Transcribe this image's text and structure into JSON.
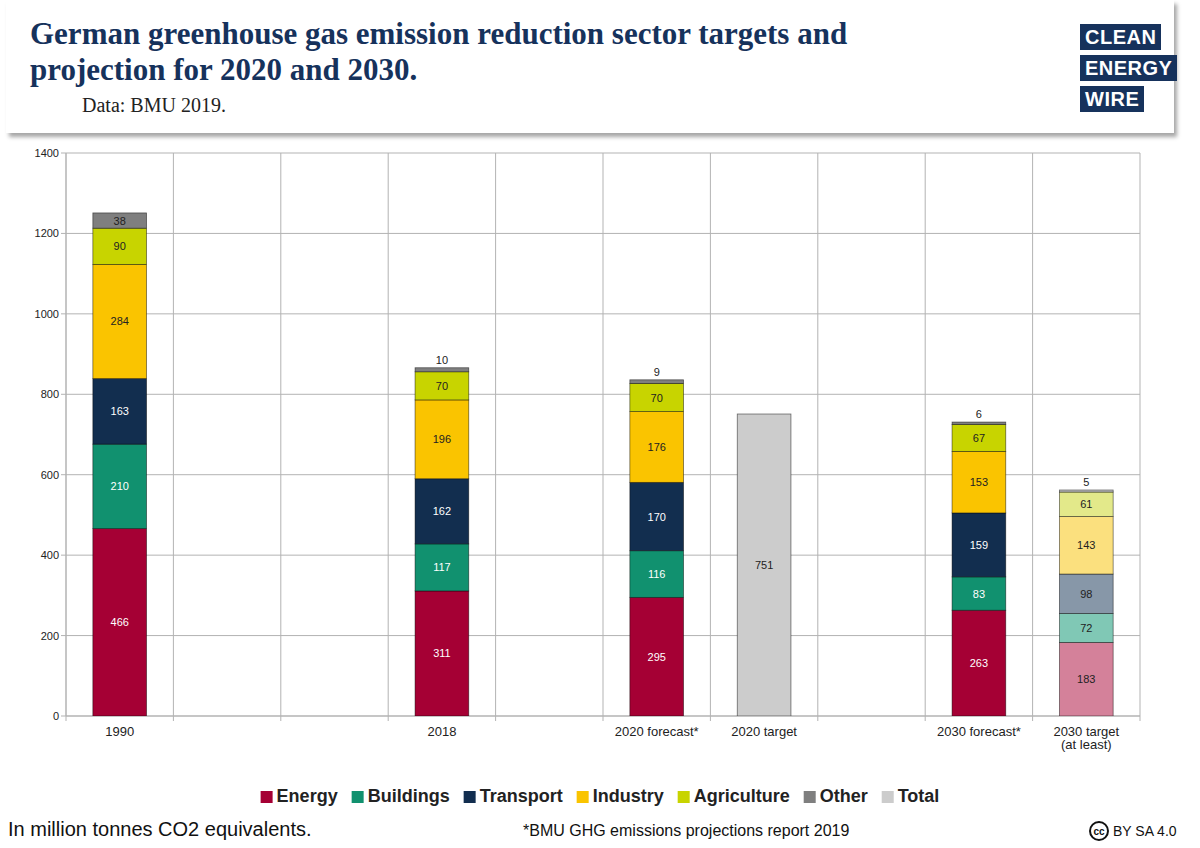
{
  "chart_data": {
    "type": "bar",
    "title": "German greenhouse gas emission reduction sector targets and\nprojection for 2020 and 2030.",
    "subtitle": "Data: BMU 2019.",
    "categories": [
      "1990",
      null,
      null,
      "2018",
      null,
      "2020 forecast*",
      "2020 target",
      null,
      "2030 forecast*",
      "2030 target\n(at least)"
    ],
    "series": [
      {
        "name": "Energy",
        "color": "#a50034",
        "colors": [
          "#a50034",
          "#a50034",
          "#a50034",
          "#a50034",
          "#a50034",
          "#a50034",
          "#a50034",
          "#a50034",
          "#a50034",
          "#d4819a"
        ],
        "values": [
          466,
          null,
          null,
          311,
          null,
          295,
          null,
          null,
          263,
          183
        ]
      },
      {
        "name": "Buildings",
        "color": "#11916f",
        "colors": [
          "#11916f",
          "#11916f",
          "#11916f",
          "#11916f",
          "#11916f",
          "#11916f",
          "#11916f",
          "#11916f",
          "#11916f",
          "#80c8b5"
        ],
        "values": [
          210,
          null,
          null,
          117,
          null,
          116,
          null,
          null,
          83,
          72
        ]
      },
      {
        "name": "Transport",
        "color": "#122e4f",
        "colors": [
          "#122e4f",
          "#122e4f",
          "#122e4f",
          "#122e4f",
          "#122e4f",
          "#122e4f",
          "#122e4f",
          "#122e4f",
          "#122e4f",
          "#8797a8"
        ],
        "values": [
          163,
          null,
          null,
          162,
          null,
          170,
          null,
          null,
          159,
          98
        ]
      },
      {
        "name": "Industry",
        "color": "#fac400",
        "colors": [
          "#fac400",
          "#fac400",
          "#fac400",
          "#fac400",
          "#fac400",
          "#fac400",
          "#fac400",
          "#fac400",
          "#fac400",
          "#fbe07e"
        ],
        "values": [
          284,
          null,
          null,
          196,
          null,
          176,
          null,
          null,
          153,
          143
        ]
      },
      {
        "name": "Agriculture",
        "color": "#c8d400",
        "colors": [
          "#c8d400",
          "#c8d400",
          "#c8d400",
          "#c8d400",
          "#c8d400",
          "#c8d400",
          "#c8d400",
          "#c8d400",
          "#c8d400",
          "#e3e98a"
        ],
        "values": [
          90,
          null,
          null,
          70,
          null,
          70,
          null,
          null,
          67,
          61
        ]
      },
      {
        "name": "Other",
        "color": "#7f7f7f",
        "colors": [
          "#7f7f7f",
          "#7f7f7f",
          "#7f7f7f",
          "#7f7f7f",
          "#7f7f7f",
          "#7f7f7f",
          "#7f7f7f",
          "#7f7f7f",
          "#7f7f7f",
          "#c4c4c4"
        ],
        "values": [
          38,
          null,
          null,
          10,
          null,
          9,
          null,
          null,
          6,
          5
        ]
      },
      {
        "name": "Total",
        "color": "#cccccc",
        "values": [
          null,
          null,
          null,
          null,
          null,
          null,
          751,
          null,
          null,
          null
        ]
      }
    ],
    "stacked": true,
    "data_labels": true,
    "grid": true,
    "legend": "bottom",
    "ylim": [
      0,
      1400
    ],
    "yticks": [
      0,
      200,
      400,
      600,
      800,
      1000,
      1200,
      1400
    ],
    "annotations": [
      "In million tonnes CO2 equivalents.",
      "*BMU GHG emissions projections report 2019"
    ],
    "branding": {
      "logo": [
        "CLEAN",
        "ENERGY",
        "WIRE"
      ],
      "license_icon": "cc",
      "license": "BY SA 4.0"
    }
  }
}
